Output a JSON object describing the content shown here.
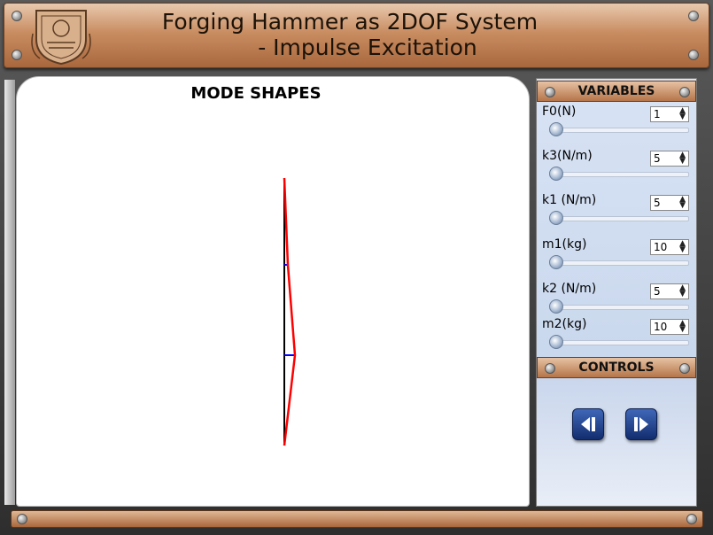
{
  "header": {
    "title_line1": "Forging Hammer as 2DOF System",
    "title_line2": "- Impulse Excitation"
  },
  "stage": {
    "title": "MODE SHAPES"
  },
  "panel": {
    "variables_title": "VARIABLES",
    "controls_title": "CONTROLS",
    "variables": [
      {
        "label": "F0(N)",
        "value": "1"
      },
      {
        "label": "k3(N/m)",
        "value": "5"
      },
      {
        "label": "k1 (N/m)",
        "value": "5"
      },
      {
        "label": "m1(kg)",
        "value": "10"
      },
      {
        "label": "k2 (N/m)",
        "value": "5"
      },
      {
        "label": "m2(kg)",
        "value": "10"
      }
    ]
  },
  "controls": {
    "prev_icon": "step-back-icon",
    "next_icon": "step-forward-icon"
  },
  "colors": {
    "mode_line": "#ff0000",
    "axis_line": "#000000",
    "mass_marker": "#0000ff",
    "panel_bg": "#c8d6ee",
    "header_brown": "#b5754a"
  }
}
